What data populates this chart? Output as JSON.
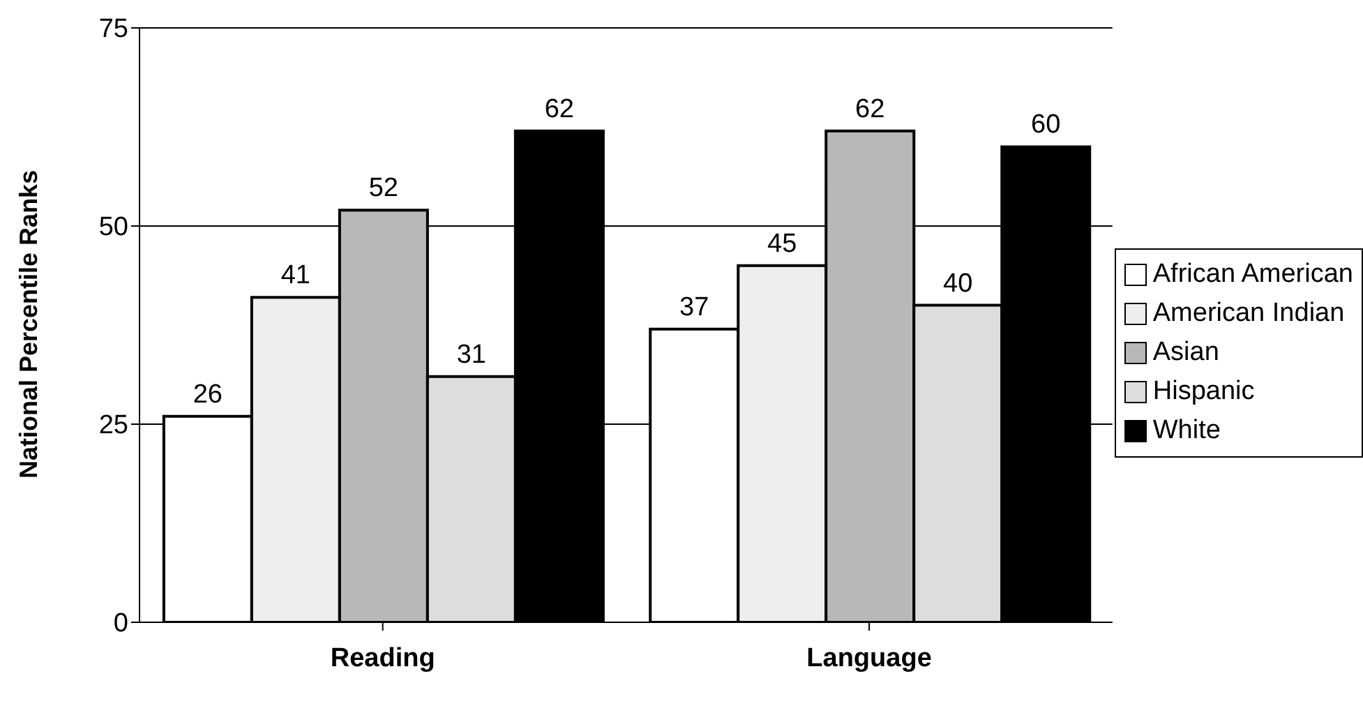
{
  "chart_data": {
    "type": "bar",
    "ylabel": "National Percentile Ranks",
    "categories": [
      "Reading",
      "Language"
    ],
    "series": [
      {
        "name": "African American",
        "color": "#ffffff",
        "values": [
          26,
          37
        ]
      },
      {
        "name": "American Indian",
        "color": "#eeeeee",
        "values": [
          41,
          45
        ]
      },
      {
        "name": "Asian",
        "color": "#b8b8b8",
        "values": [
          52,
          62
        ]
      },
      {
        "name": "Hispanic",
        "color": "#dddddd",
        "values": [
          31,
          40
        ]
      },
      {
        "name": "White",
        "color": "#000000",
        "values": [
          62,
          60
        ]
      }
    ],
    "ylim": [
      0,
      75
    ],
    "yticks": [
      0,
      25,
      50,
      75
    ],
    "grid": "y",
    "legend": "right",
    "data_labels": true
  }
}
